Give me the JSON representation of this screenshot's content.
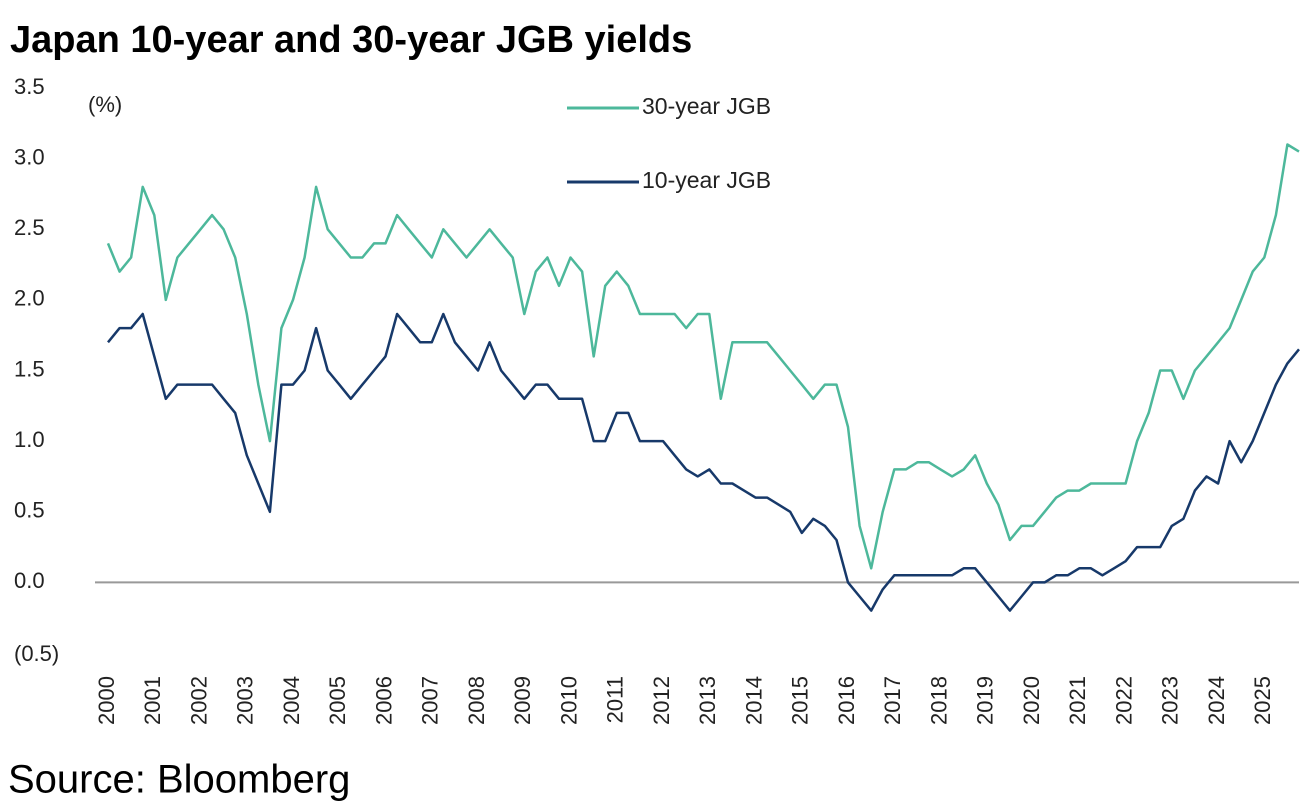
{
  "chart_data": {
    "type": "line",
    "title": "Japan 10-year and 30-year JGB yields",
    "unit_label": "(%)",
    "source": "Source: Bloomberg",
    "x": [
      2000,
      2000.25,
      2000.5,
      2000.75,
      2001,
      2001.25,
      2001.5,
      2001.75,
      2002,
      2002.25,
      2002.5,
      2002.75,
      2003,
      2003.25,
      2003.5,
      2003.75,
      2004,
      2004.25,
      2004.5,
      2004.75,
      2005,
      2005.25,
      2005.5,
      2005.75,
      2006,
      2006.25,
      2006.5,
      2006.75,
      2007,
      2007.25,
      2007.5,
      2007.75,
      2008,
      2008.25,
      2008.5,
      2008.75,
      2009,
      2009.25,
      2009.5,
      2009.75,
      2010,
      2010.25,
      2010.5,
      2010.75,
      2011,
      2011.25,
      2011.5,
      2011.75,
      2012,
      2012.25,
      2012.5,
      2012.75,
      2013,
      2013.25,
      2013.5,
      2013.75,
      2014,
      2014.25,
      2014.5,
      2014.75,
      2015,
      2015.25,
      2015.5,
      2015.75,
      2016,
      2016.25,
      2016.5,
      2016.75,
      2017,
      2017.25,
      2017.5,
      2017.75,
      2018,
      2018.25,
      2018.5,
      2018.75,
      2019,
      2019.25,
      2019.5,
      2019.75,
      2020,
      2020.25,
      2020.5,
      2020.75,
      2021,
      2021.25,
      2021.5,
      2021.75,
      2022,
      2022.25,
      2022.5,
      2022.75,
      2023,
      2023.25,
      2023.5,
      2023.75,
      2024,
      2024.25,
      2024.5,
      2024.75,
      2025,
      2025.25,
      2025.5,
      2025.75
    ],
    "series": [
      {
        "name": "30-year JGB",
        "color": "#4db89b",
        "values": [
          2.4,
          2.2,
          2.3,
          2.8,
          2.6,
          2.0,
          2.3,
          2.4,
          2.5,
          2.6,
          2.5,
          2.3,
          1.9,
          1.4,
          1.0,
          1.8,
          2.0,
          2.3,
          2.8,
          2.5,
          2.4,
          2.3,
          2.3,
          2.4,
          2.4,
          2.6,
          2.5,
          2.4,
          2.3,
          2.5,
          2.4,
          2.3,
          2.4,
          2.5,
          2.4,
          2.3,
          1.9,
          2.2,
          2.3,
          2.1,
          2.3,
          2.2,
          1.6,
          2.1,
          2.2,
          2.1,
          1.9,
          1.9,
          1.9,
          1.9,
          1.8,
          1.9,
          1.9,
          1.3,
          1.7,
          1.7,
          1.7,
          1.7,
          1.6,
          1.5,
          1.4,
          1.3,
          1.4,
          1.4,
          1.1,
          0.4,
          0.1,
          0.5,
          0.8,
          0.8,
          0.85,
          0.85,
          0.8,
          0.75,
          0.8,
          0.9,
          0.7,
          0.55,
          0.3,
          0.4,
          0.4,
          0.5,
          0.6,
          0.65,
          0.65,
          0.7,
          0.7,
          0.7,
          0.7,
          1.0,
          1.2,
          1.5,
          1.5,
          1.3,
          1.5,
          1.6,
          1.7,
          1.8,
          2.0,
          2.2,
          2.3,
          2.6,
          3.1,
          3.05
        ]
      },
      {
        "name": "10-year JGB",
        "color": "#17396a",
        "values": [
          1.7,
          1.8,
          1.8,
          1.9,
          1.6,
          1.3,
          1.4,
          1.4,
          1.4,
          1.4,
          1.3,
          1.2,
          0.9,
          0.7,
          0.5,
          1.4,
          1.4,
          1.5,
          1.8,
          1.5,
          1.4,
          1.3,
          1.4,
          1.5,
          1.6,
          1.9,
          1.8,
          1.7,
          1.7,
          1.9,
          1.7,
          1.6,
          1.5,
          1.7,
          1.5,
          1.4,
          1.3,
          1.4,
          1.4,
          1.3,
          1.3,
          1.3,
          1.0,
          1.0,
          1.2,
          1.2,
          1.0,
          1.0,
          1.0,
          0.9,
          0.8,
          0.75,
          0.8,
          0.7,
          0.7,
          0.65,
          0.6,
          0.6,
          0.55,
          0.5,
          0.35,
          0.45,
          0.4,
          0.3,
          0.0,
          -0.1,
          -0.2,
          -0.05,
          0.05,
          0.05,
          0.05,
          0.05,
          0.05,
          0.05,
          0.1,
          0.1,
          0.0,
          -0.1,
          -0.2,
          -0.1,
          0.0,
          0.0,
          0.05,
          0.05,
          0.1,
          0.1,
          0.05,
          0.1,
          0.15,
          0.25,
          0.25,
          0.25,
          0.4,
          0.45,
          0.65,
          0.75,
          0.7,
          1.0,
          0.85,
          1.0,
          1.2,
          1.4,
          1.55,
          1.65
        ]
      }
    ],
    "xlim": [
      2000,
      2025.75
    ],
    "xticks": [
      2000,
      2001,
      2002,
      2003,
      2004,
      2005,
      2006,
      2007,
      2008,
      2009,
      2010,
      2011,
      2012,
      2013,
      2014,
      2015,
      2016,
      2017,
      2018,
      2019,
      2020,
      2021,
      2022,
      2023,
      2024,
      2025
    ],
    "ylim": [
      -0.5,
      3.5
    ],
    "yticks": [
      {
        "value": -0.5,
        "label": "(0.5)"
      },
      {
        "value": 0,
        "label": "0.0"
      },
      0.5,
      {
        "value": 1,
        "label": "1.0"
      },
      1.5,
      {
        "value": 2,
        "label": "2.0"
      },
      2.5,
      {
        "value": 3,
        "label": "3.0"
      },
      3.5
    ],
    "legend": "upper center"
  }
}
